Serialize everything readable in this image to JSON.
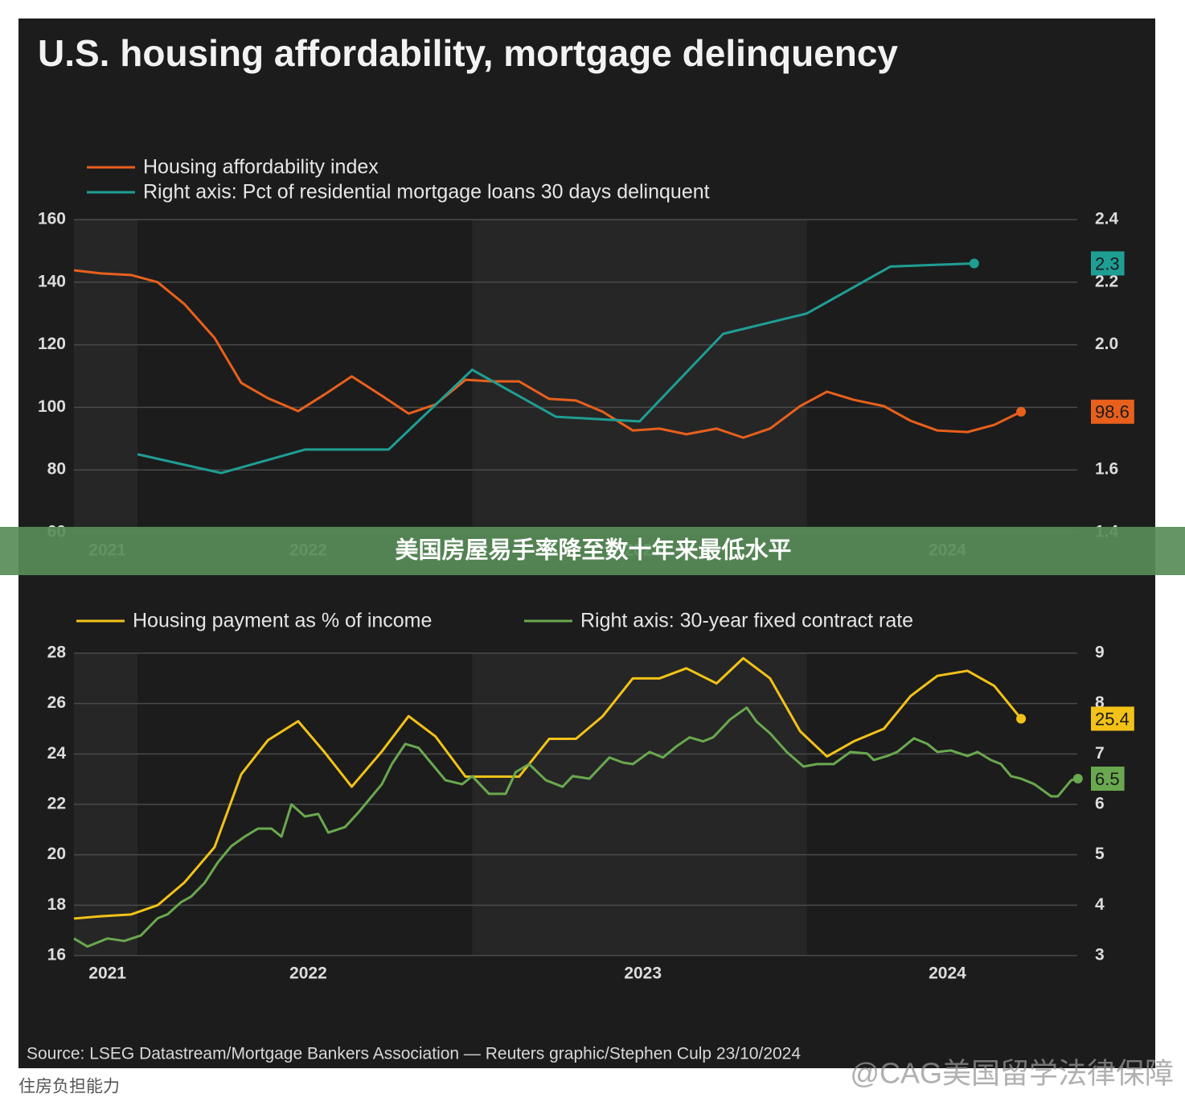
{
  "title": "U.S. housing affordability, mortgage delinquency",
  "source": "Source: LSEG Datastream/Mortgage Bankers Association — Reuters graphic/Stephen Culp 23/10/2024",
  "banner": "美国房屋易手率降至数十年来最低水平",
  "caption": "住房负担能力",
  "watermark": "@CAG美国留学法律保障",
  "chart_data": [
    {
      "type": "line",
      "xlim": [
        2021.81,
        2024.82
      ],
      "xticks": [
        {
          "value": 2021.91,
          "label": "2021"
        },
        {
          "value": 2022.51,
          "label": "2022"
        },
        {
          "value": 2023.51,
          "label": "2023"
        },
        {
          "value": 2024.42,
          "label": "2024"
        }
      ],
      "ylim": [
        60,
        160
      ],
      "yticks": [
        60,
        80,
        100,
        120,
        140,
        160
      ],
      "y2lim": [
        1.4,
        2.4
      ],
      "y2ticks": [
        1.4,
        1.6,
        1.8,
        {
          "value": 2,
          "label": "2.0"
        },
        2.2,
        2.4
      ],
      "grid": true,
      "series": [
        {
          "name": "Housing affordability index",
          "color": "#e8601c",
          "x": [
            2021.81,
            2021.89,
            2021.98,
            2022.06,
            2022.14,
            2022.23,
            2022.31,
            2022.39,
            2022.48,
            2022.56,
            2022.64,
            2022.73,
            2022.81,
            2022.89,
            2022.98,
            2023.06,
            2023.14,
            2023.23,
            2023.31,
            2023.39,
            2023.48,
            2023.56,
            2023.64,
            2023.73,
            2023.81,
            2023.89,
            2023.98,
            2024.06,
            2024.14,
            2024.23,
            2024.31,
            2024.39,
            2024.48,
            2024.56,
            2024.64
          ],
          "values": [
            143.8,
            142.8,
            142.3,
            140,
            133,
            122.2,
            107.8,
            102.9,
            98.8,
            104.2,
            109.9,
            103.7,
            98,
            100.9,
            108.8,
            108.3,
            108.3,
            102.7,
            102.2,
            98.6,
            92.6,
            93.2,
            91.4,
            93.2,
            90.3,
            93.2,
            100.4,
            105,
            102.4,
            100.4,
            95.7,
            92.6,
            92.1,
            94.4,
            98.6
          ],
          "value_labels": [
            null,
            null,
            null,
            null,
            null,
            null,
            null,
            null,
            null,
            null,
            null,
            null,
            null,
            null,
            null,
            null,
            null,
            null,
            null,
            null,
            null,
            null,
            null,
            null,
            null,
            null,
            null,
            null,
            null,
            null,
            null,
            null,
            null,
            null,
            "98.6"
          ]
        },
        {
          "name": "Right axis: Pct of residential mortgage loans 30 days delinquent",
          "color": "#1f9e94",
          "axis": "y2",
          "x": [
            2022.0,
            2022.25,
            2022.5,
            2022.75,
            2023.0,
            2023.25,
            2023.5,
            2023.75,
            2024.0,
            2024.25,
            2024.5
          ],
          "values": [
            1.65,
            1.59,
            1.665,
            1.665,
            1.92,
            1.77,
            1.755,
            2.035,
            2.1,
            2.25,
            2.26
          ],
          "value_labels": [
            null,
            null,
            null,
            null,
            null,
            null,
            null,
            null,
            null,
            null,
            "2.3"
          ]
        }
      ]
    },
    {
      "type": "line",
      "xlim": [
        2021.81,
        2024.82
      ],
      "xticks": [
        {
          "value": 2021.91,
          "label": "2021"
        },
        {
          "value": 2022.51,
          "label": "2022"
        },
        {
          "value": 2023.51,
          "label": "2023"
        },
        {
          "value": 2024.42,
          "label": "2024"
        }
      ],
      "ylim": [
        16,
        28
      ],
      "yticks": [
        16,
        18,
        20,
        22,
        24,
        26,
        28
      ],
      "y2lim": [
        3,
        9
      ],
      "y2ticks": [
        3,
        4,
        5,
        6,
        7,
        8,
        9
      ],
      "grid": true,
      "series": [
        {
          "name": "Housing payment as % of income",
          "color": "#f2c218",
          "x": [
            2021.81,
            2021.89,
            2021.98,
            2022.06,
            2022.14,
            2022.23,
            2022.31,
            2022.39,
            2022.48,
            2022.56,
            2022.64,
            2022.73,
            2022.81,
            2022.89,
            2022.98,
            2023.06,
            2023.14,
            2023.23,
            2023.31,
            2023.39,
            2023.48,
            2023.56,
            2023.64,
            2023.73,
            2023.81,
            2023.89,
            2023.98,
            2024.06,
            2024.14,
            2024.23,
            2024.31,
            2024.39,
            2024.48,
            2024.56,
            2024.64
          ],
          "values": [
            17.47,
            17.56,
            17.63,
            18,
            18.9,
            20.3,
            23.2,
            24.55,
            25.3,
            24.05,
            22.7,
            24.1,
            25.5,
            24.7,
            23.1,
            23.1,
            23.1,
            24.6,
            24.6,
            25.5,
            27,
            27,
            27.4,
            26.8,
            27.8,
            27,
            24.9,
            23.9,
            24.5,
            25,
            26.3,
            27.1,
            27.3,
            26.7,
            25.4
          ],
          "value_labels": [
            null,
            null,
            null,
            null,
            null,
            null,
            null,
            null,
            null,
            null,
            null,
            null,
            null,
            null,
            null,
            null,
            null,
            null,
            null,
            null,
            null,
            null,
            null,
            null,
            null,
            null,
            null,
            null,
            null,
            null,
            null,
            null,
            null,
            null,
            "25.4"
          ]
        },
        {
          "name": "Right axis: 30-year fixed contract rate",
          "color": "#6aa84f",
          "axis": "y2",
          "x": [
            2021.81,
            2021.85,
            2021.91,
            2021.96,
            2022.01,
            2022.06,
            2022.09,
            2022.13,
            2022.16,
            2022.2,
            2022.24,
            2022.28,
            2022.32,
            2022.36,
            2022.4,
            2022.43,
            2022.46,
            2022.5,
            2022.54,
            2022.57,
            2022.62,
            2022.66,
            2022.69,
            2022.73,
            2022.76,
            2022.8,
            2022.84,
            2022.88,
            2022.92,
            2022.97,
            2023.0,
            2023.05,
            2023.1,
            2023.13,
            2023.17,
            2023.22,
            2023.27,
            2023.3,
            2023.35,
            2023.41,
            2023.45,
            2023.48,
            2023.53,
            2023.57,
            2023.61,
            2023.65,
            2023.69,
            2023.72,
            2023.77,
            2023.82,
            2023.85,
            2023.89,
            2023.94,
            2023.99,
            2024.03,
            2024.08,
            2024.13,
            2024.18,
            2024.2,
            2024.24,
            2024.27,
            2024.32,
            2024.36,
            2024.39,
            2024.43,
            2024.48,
            2024.51,
            2024.55,
            2024.58,
            2024.61,
            2024.64,
            2024.68,
            2024.73,
            2024.75,
            2024.79,
            2024.81
          ],
          "values": [
            3.34,
            3.18,
            3.34,
            3.29,
            3.4,
            3.74,
            3.82,
            4.06,
            4.17,
            4.44,
            4.85,
            5.17,
            5.36,
            5.52,
            5.52,
            5.36,
            6,
            5.76,
            5.81,
            5.44,
            5.55,
            5.84,
            6.08,
            6.4,
            6.8,
            7.2,
            7.12,
            6.8,
            6.48,
            6.4,
            6.56,
            6.21,
            6.21,
            6.64,
            6.8,
            6.48,
            6.35,
            6.56,
            6.51,
            6.93,
            6.83,
            6.8,
            7.04,
            6.93,
            7.15,
            7.33,
            7.25,
            7.33,
            7.68,
            7.92,
            7.64,
            7.41,
            7.04,
            6.75,
            6.8,
            6.8,
            7.04,
            7.01,
            6.88,
            6.96,
            7.04,
            7.31,
            7.2,
            7.04,
            7.07,
            6.96,
            7.04,
            6.88,
            6.8,
            6.56,
            6.51,
            6.4,
            6.16,
            6.16,
            6.48,
            6.51
          ],
          "value_labels": [
            null,
            null,
            null,
            null,
            null,
            null,
            null,
            null,
            null,
            null,
            null,
            null,
            null,
            null,
            null,
            null,
            null,
            null,
            null,
            null,
            null,
            null,
            null,
            null,
            null,
            null,
            null,
            null,
            null,
            null,
            null,
            null,
            null,
            null,
            null,
            null,
            null,
            null,
            null,
            null,
            null,
            null,
            null,
            null,
            null,
            null,
            null,
            null,
            null,
            null,
            null,
            null,
            null,
            null,
            null,
            null,
            null,
            null,
            null,
            null,
            null,
            null,
            null,
            null,
            null,
            null,
            null,
            null,
            null,
            null,
            null,
            null,
            null,
            null,
            null,
            "6.5"
          ]
        }
      ]
    }
  ]
}
